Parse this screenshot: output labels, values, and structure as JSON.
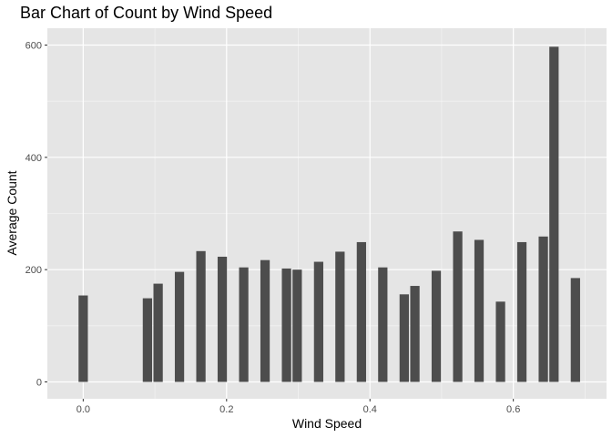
{
  "chart_data": {
    "type": "bar",
    "title": "Bar Chart of Count by Wind Speed",
    "xlabel": "Wind Speed",
    "ylabel": "Average Count",
    "xlim": [
      -0.05,
      0.73
    ],
    "ylim": [
      -30,
      630
    ],
    "x_ticks": [
      0.0,
      0.2,
      0.4,
      0.6
    ],
    "x_tick_labels": [
      "0.0",
      "0.2",
      "0.4",
      "0.6"
    ],
    "y_ticks": [
      0,
      200,
      400,
      600
    ],
    "y_tick_labels": [
      "0",
      "200",
      "400",
      "600"
    ],
    "x_minor_ticks": [
      0.1,
      0.3,
      0.5,
      0.7
    ],
    "y_minor_ticks": [
      100,
      300,
      500
    ],
    "grid": true,
    "bar_width": 0.013,
    "colors": {
      "panel": "#e5e5e5",
      "grid_major": "#ffffff",
      "bar": "#4d4d4d"
    },
    "x": [
      0.0,
      0.0896,
      0.1045,
      0.1343,
      0.1642,
      0.194,
      0.2239,
      0.2537,
      0.2836,
      0.2985,
      0.3284,
      0.3582,
      0.3881,
      0.4179,
      0.4478,
      0.4627,
      0.4925,
      0.5224,
      0.5522,
      0.5821,
      0.6119,
      0.6418,
      0.6567,
      0.6866
    ],
    "values": [
      154,
      149,
      175,
      196,
      233,
      223,
      204,
      217,
      202,
      200,
      214,
      232,
      249,
      204,
      156,
      171,
      198,
      268,
      253,
      143,
      249,
      259,
      597,
      185
    ]
  }
}
